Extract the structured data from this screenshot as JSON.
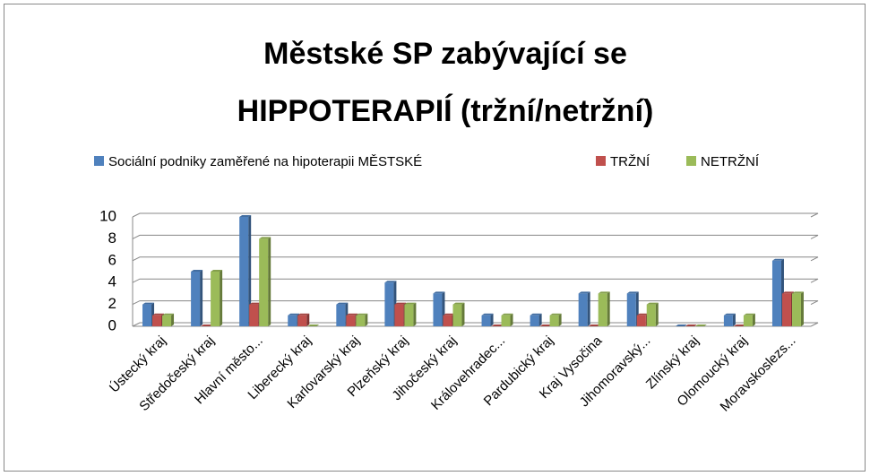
{
  "chart_data": {
    "type": "bar",
    "title": [
      "Městské SP zabývající se",
      "HIPPOTERAPIÍ  (tržní/netržní)"
    ],
    "categories": [
      "Ústecký kraj",
      "Středočeský kraj",
      "Hlavní město...",
      "Liberecký kraj",
      "Karlovarský kraj",
      "Plzeňský kraj",
      "Jihočeský kraj",
      "Královehradec...",
      "Pardubický kraj",
      "Kraj Vysočina",
      "Jihomoravský...",
      "Zlínský kraj",
      "Olomoucký kraj",
      "Moravskoslezs..."
    ],
    "series": [
      {
        "name": "Sociální podniky zaměřené na hipoterapii MĚSTSKÉ",
        "color": "#4f81bd",
        "values": [
          2,
          5,
          10,
          1,
          2,
          4,
          3,
          1,
          1,
          3,
          3,
          0,
          1,
          6
        ]
      },
      {
        "name": "TRŽNÍ",
        "color": "#c0504d",
        "values": [
          1,
          0,
          2,
          1,
          1,
          2,
          1,
          0,
          0,
          0,
          1,
          0,
          0,
          3
        ]
      },
      {
        "name": "NETRŽNÍ",
        "color": "#9bbb59",
        "values": [
          1,
          5,
          8,
          0,
          1,
          2,
          2,
          1,
          1,
          3,
          2,
          0,
          1,
          3
        ]
      }
    ],
    "ylim": [
      0,
      10
    ],
    "yticks": [
      0,
      2,
      4,
      6,
      8,
      10
    ],
    "grid": true,
    "legend": "top"
  }
}
